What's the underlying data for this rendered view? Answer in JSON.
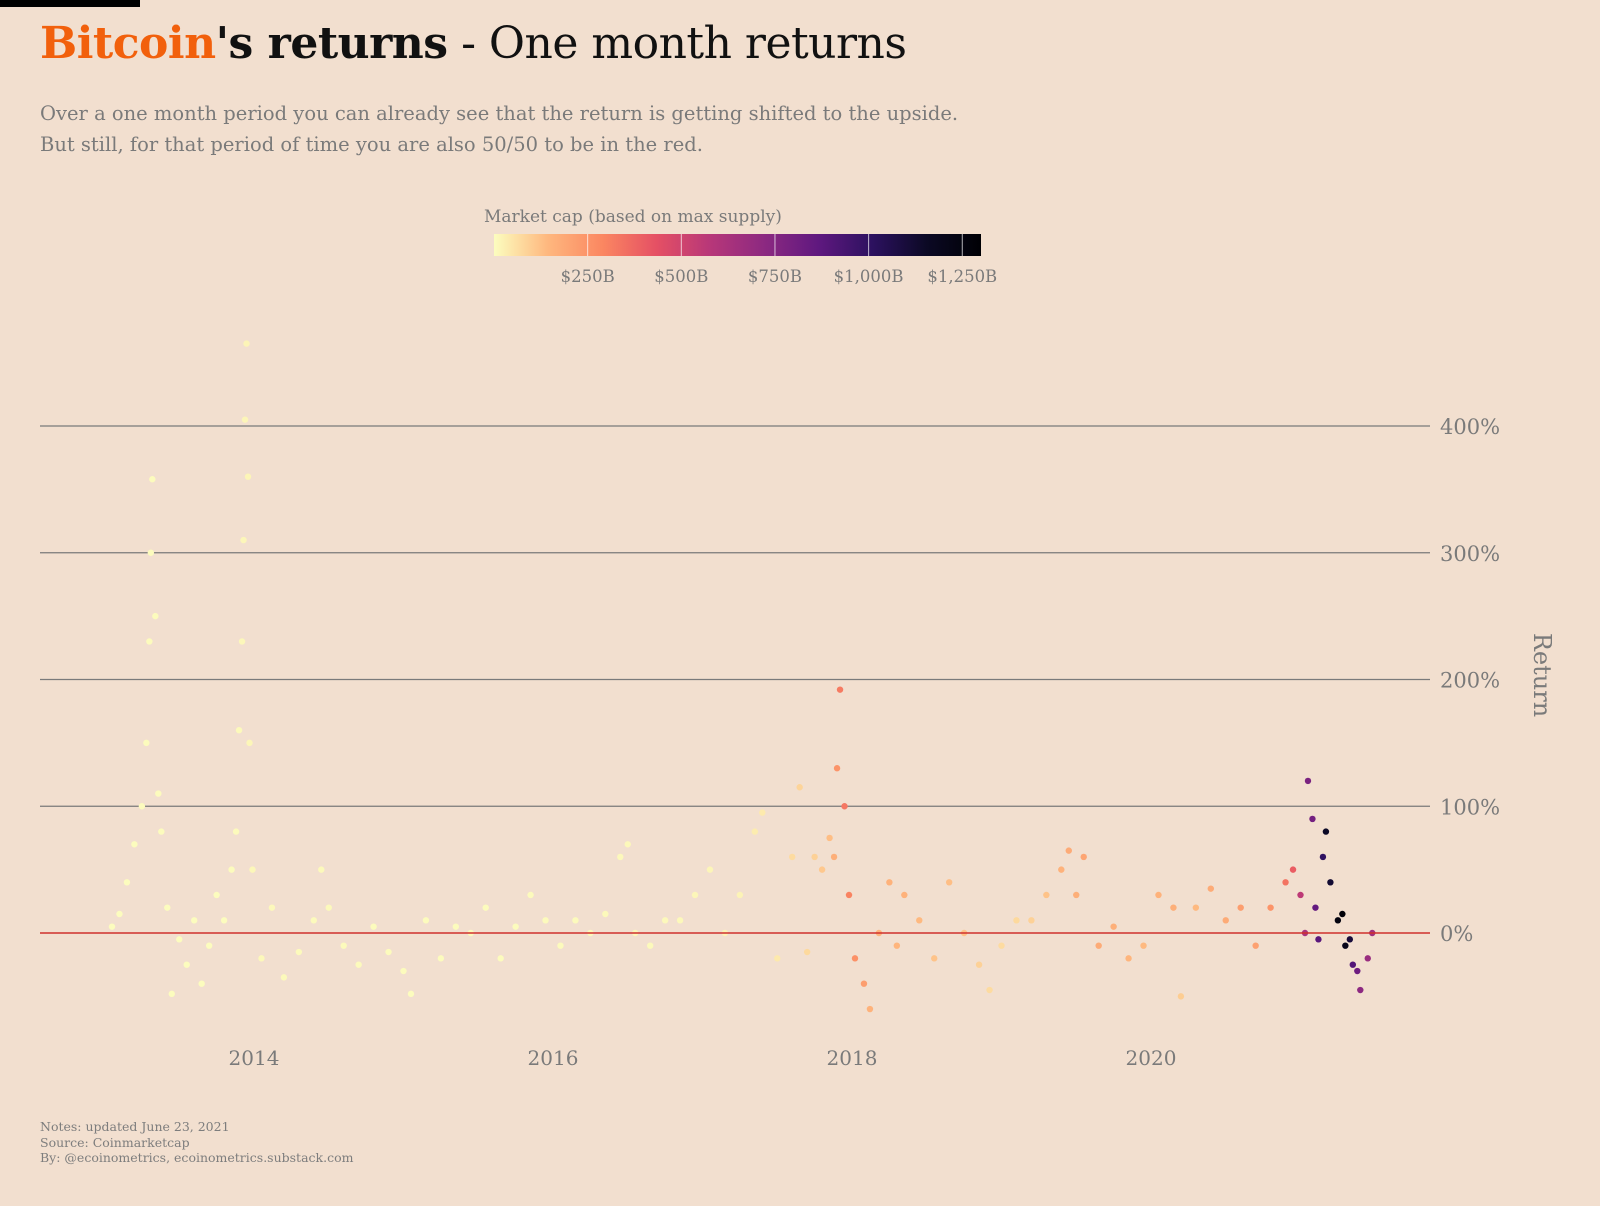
{
  "header": {
    "title_highlight": "Bitcoin",
    "title_bold": "'s returns",
    "title_rest": " - One month returns",
    "subtitle_line1": "Over a one month period you can already see that the return is getting shifted to the upside.",
    "subtitle_line2": "But still, for that period of time you are also 50/50 to be in the red."
  },
  "notes": {
    "line1": "Notes: updated June 23, 2021",
    "line2": "Source: Coinmarketcap",
    "line3": "By: @ecoinometrics, ecoinometrics.substack.com"
  },
  "colors": {
    "background": "#f2dfcf",
    "brand": "#f2600c",
    "zero_line": "#d0312d",
    "grid": "#7a7a7a",
    "scale": [
      "#fcfdbf",
      "#feb77e",
      "#fb8761",
      "#e55064",
      "#b73779",
      "#8c2981",
      "#5f187f",
      "#2c115f",
      "#0b0924",
      "#000004"
    ]
  },
  "chart_data": {
    "type": "scatter",
    "title": "Bitcoin's returns - One month returns",
    "xlabel": "",
    "ylabel": "Return",
    "xlim": [
      2012.4,
      2021.9
    ],
    "ylim": [
      -70,
      470
    ],
    "x_ticks": [
      2014,
      2016,
      2018,
      2020
    ],
    "x_tick_labels": [
      "2014",
      "2016",
      "2018",
      "2020"
    ],
    "y_ticks": [
      0,
      100,
      200,
      300,
      400
    ],
    "y_tick_labels": [
      "0%",
      "100%",
      "200%",
      "300%",
      "400%"
    ],
    "grid": true,
    "zero_line": true,
    "color_legend": {
      "title": "Market cap (based on max supply)",
      "range": [
        0,
        1300
      ],
      "unit": "$B",
      "ticks": [
        250,
        500,
        750,
        1000,
        1250
      ],
      "tick_labels": [
        "$250B",
        "$500B",
        "$750B",
        "$1,000B",
        "$1,250B"
      ]
    },
    "series": [
      {
        "name": "One month return vs market cap",
        "points": [
          [
            2013.05,
            5,
            2
          ],
          [
            2013.1,
            15,
            2
          ],
          [
            2013.15,
            40,
            2
          ],
          [
            2013.2,
            70,
            3
          ],
          [
            2013.25,
            100,
            4
          ],
          [
            2013.28,
            150,
            4
          ],
          [
            2013.3,
            230,
            5
          ],
          [
            2013.31,
            300,
            5
          ],
          [
            2013.32,
            358,
            5
          ],
          [
            2013.34,
            250,
            5
          ],
          [
            2013.36,
            110,
            4
          ],
          [
            2013.38,
            80,
            4
          ],
          [
            2013.42,
            20,
            3
          ],
          [
            2013.45,
            -48,
            3
          ],
          [
            2013.5,
            -5,
            3
          ],
          [
            2013.55,
            -25,
            3
          ],
          [
            2013.6,
            10,
            3
          ],
          [
            2013.65,
            -40,
            3
          ],
          [
            2013.7,
            -10,
            3
          ],
          [
            2013.75,
            30,
            3
          ],
          [
            2013.8,
            10,
            3
          ],
          [
            2013.85,
            50,
            4
          ],
          [
            2013.88,
            80,
            6
          ],
          [
            2013.9,
            160,
            9
          ],
          [
            2013.92,
            230,
            12
          ],
          [
            2013.93,
            310,
            14
          ],
          [
            2013.94,
            405,
            16
          ],
          [
            2013.95,
            465,
            18
          ],
          [
            2013.96,
            360,
            17
          ],
          [
            2013.97,
            150,
            15
          ],
          [
            2013.99,
            50,
            13
          ],
          [
            2014.05,
            -20,
            11
          ],
          [
            2014.12,
            20,
            10
          ],
          [
            2014.2,
            -35,
            8
          ],
          [
            2014.3,
            -15,
            6
          ],
          [
            2014.4,
            10,
            7
          ],
          [
            2014.45,
            50,
            8
          ],
          [
            2014.5,
            20,
            8
          ],
          [
            2014.6,
            -10,
            7
          ],
          [
            2014.7,
            -25,
            6
          ],
          [
            2014.8,
            5,
            5
          ],
          [
            2014.9,
            -15,
            5
          ],
          [
            2015.0,
            -30,
            4
          ],
          [
            2015.05,
            -48,
            3
          ],
          [
            2015.15,
            10,
            4
          ],
          [
            2015.25,
            -20,
            4
          ],
          [
            2015.35,
            5,
            4
          ],
          [
            2015.45,
            0,
            4
          ],
          [
            2015.55,
            20,
            4
          ],
          [
            2015.65,
            -20,
            4
          ],
          [
            2015.75,
            5,
            4
          ],
          [
            2015.85,
            30,
            6
          ],
          [
            2015.95,
            10,
            7
          ],
          [
            2016.05,
            -10,
            7
          ],
          [
            2016.15,
            10,
            7
          ],
          [
            2016.25,
            0,
            7
          ],
          [
            2016.35,
            15,
            8
          ],
          [
            2016.45,
            60,
            10
          ],
          [
            2016.5,
            70,
            11
          ],
          [
            2016.55,
            0,
            10
          ],
          [
            2016.65,
            -10,
            9
          ],
          [
            2016.75,
            10,
            10
          ],
          [
            2016.85,
            10,
            11
          ],
          [
            2016.95,
            30,
            14
          ],
          [
            2017.05,
            50,
            16
          ],
          [
            2017.15,
            0,
            18
          ],
          [
            2017.25,
            30,
            20
          ],
          [
            2017.35,
            80,
            35
          ],
          [
            2017.4,
            95,
            40
          ],
          [
            2017.5,
            -20,
            42
          ],
          [
            2017.6,
            60,
            70
          ],
          [
            2017.65,
            115,
            85
          ],
          [
            2017.7,
            -15,
            75
          ],
          [
            2017.75,
            60,
            90
          ],
          [
            2017.8,
            50,
            110
          ],
          [
            2017.85,
            75,
            130
          ],
          [
            2017.88,
            60,
            170
          ],
          [
            2017.9,
            130,
            250
          ],
          [
            2017.92,
            192,
            320
          ],
          [
            2017.95,
            100,
            330
          ],
          [
            2017.98,
            30,
            300
          ],
          [
            2018.02,
            -20,
            260
          ],
          [
            2018.08,
            -40,
            220
          ],
          [
            2018.12,
            -60,
            160
          ],
          [
            2018.18,
            0,
            150
          ],
          [
            2018.25,
            40,
            160
          ],
          [
            2018.3,
            -10,
            150
          ],
          [
            2018.35,
            30,
            160
          ],
          [
            2018.45,
            10,
            140
          ],
          [
            2018.55,
            -20,
            120
          ],
          [
            2018.65,
            40,
            130
          ],
          [
            2018.75,
            0,
            120
          ],
          [
            2018.85,
            -25,
            90
          ],
          [
            2018.92,
            -45,
            70
          ],
          [
            2019.0,
            -10,
            70
          ],
          [
            2019.1,
            10,
            75
          ],
          [
            2019.2,
            10,
            90
          ],
          [
            2019.3,
            30,
            120
          ],
          [
            2019.4,
            50,
            160
          ],
          [
            2019.45,
            65,
            180
          ],
          [
            2019.5,
            30,
            170
          ],
          [
            2019.55,
            60,
            200
          ],
          [
            2019.65,
            -10,
            180
          ],
          [
            2019.75,
            5,
            170
          ],
          [
            2019.85,
            -20,
            150
          ],
          [
            2019.95,
            -10,
            140
          ],
          [
            2020.05,
            30,
            160
          ],
          [
            2020.15,
            20,
            170
          ],
          [
            2020.2,
            -50,
            100
          ],
          [
            2020.3,
            20,
            140
          ],
          [
            2020.4,
            35,
            180
          ],
          [
            2020.5,
            10,
            180
          ],
          [
            2020.6,
            20,
            220
          ],
          [
            2020.7,
            -10,
            210
          ],
          [
            2020.8,
            20,
            250
          ],
          [
            2020.9,
            40,
            340
          ],
          [
            2020.95,
            50,
            400
          ],
          [
            2021.0,
            30,
            560
          ],
          [
            2021.03,
            0,
            620
          ],
          [
            2021.05,
            120,
            780
          ],
          [
            2021.08,
            90,
            800
          ],
          [
            2021.1,
            20,
            850
          ],
          [
            2021.12,
            -5,
            880
          ],
          [
            2021.15,
            60,
            1000
          ],
          [
            2021.17,
            80,
            1150
          ],
          [
            2021.2,
            40,
            1120
          ],
          [
            2021.25,
            10,
            1250
          ],
          [
            2021.28,
            15,
            1280
          ],
          [
            2021.3,
            -10,
            1200
          ],
          [
            2021.33,
            -5,
            1100
          ],
          [
            2021.35,
            -25,
            900
          ],
          [
            2021.38,
            -30,
            820
          ],
          [
            2021.4,
            -45,
            720
          ],
          [
            2021.45,
            -20,
            680
          ],
          [
            2021.48,
            0,
            650
          ]
        ]
      }
    ]
  }
}
